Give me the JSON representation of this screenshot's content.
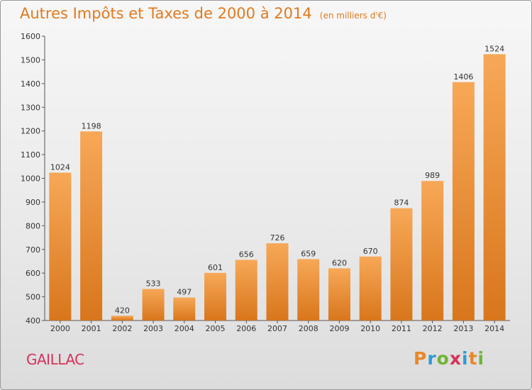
{
  "chart_data": {
    "type": "bar",
    "title": "Autres Impôts et Taxes de 2000 à 2014",
    "subtitle": "(en milliers d'€)",
    "categories": [
      "2000",
      "2001",
      "2002",
      "2003",
      "2004",
      "2005",
      "2006",
      "2007",
      "2008",
      "2009",
      "2010",
      "2011",
      "2012",
      "2013",
      "2014"
    ],
    "values": [
      1024,
      1198,
      420,
      533,
      497,
      601,
      656,
      726,
      659,
      620,
      670,
      874,
      989,
      1406,
      1524
    ],
    "ylim": [
      400,
      1600
    ],
    "yticks": [
      400,
      500,
      600,
      700,
      800,
      900,
      1000,
      1100,
      1200,
      1300,
      1400,
      1500,
      1600
    ],
    "grid": false,
    "bar_color_top": "#f7a857",
    "bar_color_bottom": "#d8761c"
  },
  "footer": {
    "place": "GAILLAC",
    "brand": [
      "P",
      "r",
      "o",
      "x",
      "i",
      "t",
      "i"
    ],
    "brand_colors": [
      "#e8872a",
      "#2e9bd6",
      "#6fb437",
      "#d6325a",
      "#2e9bd6",
      "#e8872a",
      "#6fb437"
    ]
  }
}
